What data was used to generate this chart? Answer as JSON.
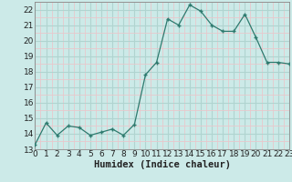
{
  "x": [
    0,
    1,
    2,
    3,
    4,
    5,
    6,
    7,
    8,
    9,
    10,
    11,
    12,
    13,
    14,
    15,
    16,
    17,
    18,
    19,
    20,
    21,
    22,
    23
  ],
  "y": [
    13.3,
    14.7,
    13.9,
    14.5,
    14.4,
    13.9,
    14.1,
    14.3,
    13.9,
    14.6,
    17.8,
    18.6,
    21.4,
    21.0,
    22.3,
    21.9,
    21.0,
    20.6,
    20.6,
    21.7,
    20.2,
    18.6,
    18.6,
    18.5
  ],
  "line_color": "#2d7a6e",
  "marker": "P",
  "marker_size": 2.5,
  "bg_color": "#cceae8",
  "grid_major_color": "#b0d4d0",
  "grid_minor_color": "#e8c8cc",
  "xlabel": "Humidex (Indice chaleur)",
  "ylim": [
    13,
    22.5
  ],
  "xlim": [
    0,
    23
  ],
  "yticks": [
    13,
    14,
    15,
    16,
    17,
    18,
    19,
    20,
    21,
    22
  ],
  "xticks": [
    0,
    1,
    2,
    3,
    4,
    5,
    6,
    7,
    8,
    9,
    10,
    11,
    12,
    13,
    14,
    15,
    16,
    17,
    18,
    19,
    20,
    21,
    22,
    23
  ],
  "tick_fontsize": 6.5,
  "xlabel_fontsize": 7.5
}
